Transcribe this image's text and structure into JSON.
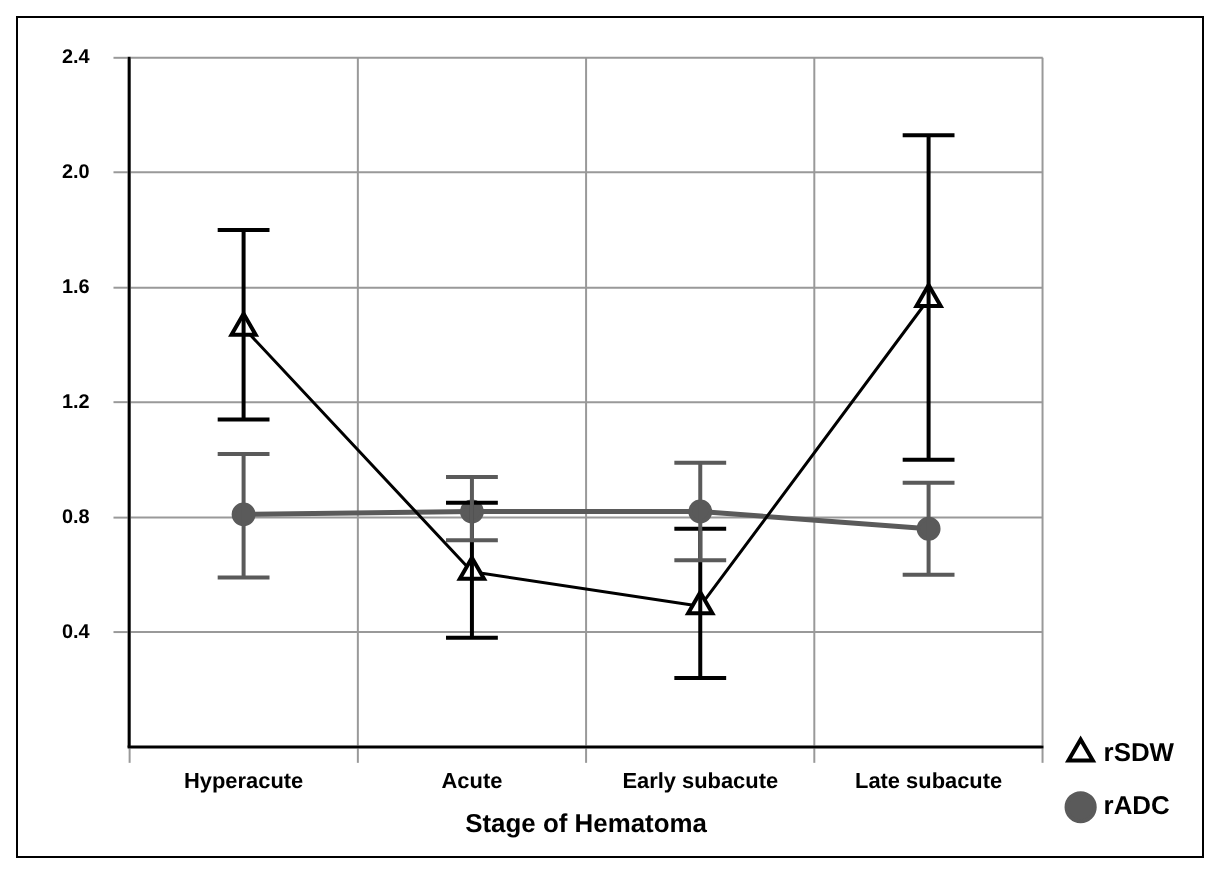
{
  "chart_data": {
    "type": "line",
    "xlabel": "Stage of Hematoma",
    "categories": [
      "Hyperacute",
      "Acute",
      "Early subacute",
      "Late subacute"
    ],
    "ylim": [
      0,
      2.4
    ],
    "yticks": [
      0.4,
      0.8,
      1.2,
      1.6,
      {
        "value": 2,
        "label": "2.0"
      },
      2.4
    ],
    "grid": true,
    "legend": "bottom right",
    "line_style": "solid",
    "series": [
      {
        "name": "rSDW",
        "color": "#000000",
        "marker": "triangle",
        "values": [
          1.46,
          0.61,
          0.49,
          1.56
        ],
        "errors": [
          [
            1.14,
            1.8
          ],
          [
            0.38,
            0.85
          ],
          [
            0.24,
            0.76
          ],
          [
            1.0,
            2.13
          ]
        ]
      },
      {
        "name": "rADC",
        "color": "#5a5a5a",
        "marker": "circle",
        "values": [
          0.81,
          0.82,
          0.82,
          0.76
        ],
        "errors": [
          [
            0.59,
            1.02
          ],
          [
            0.72,
            0.94
          ],
          [
            0.65,
            0.99
          ],
          [
            0.6,
            0.92
          ]
        ]
      }
    ]
  }
}
